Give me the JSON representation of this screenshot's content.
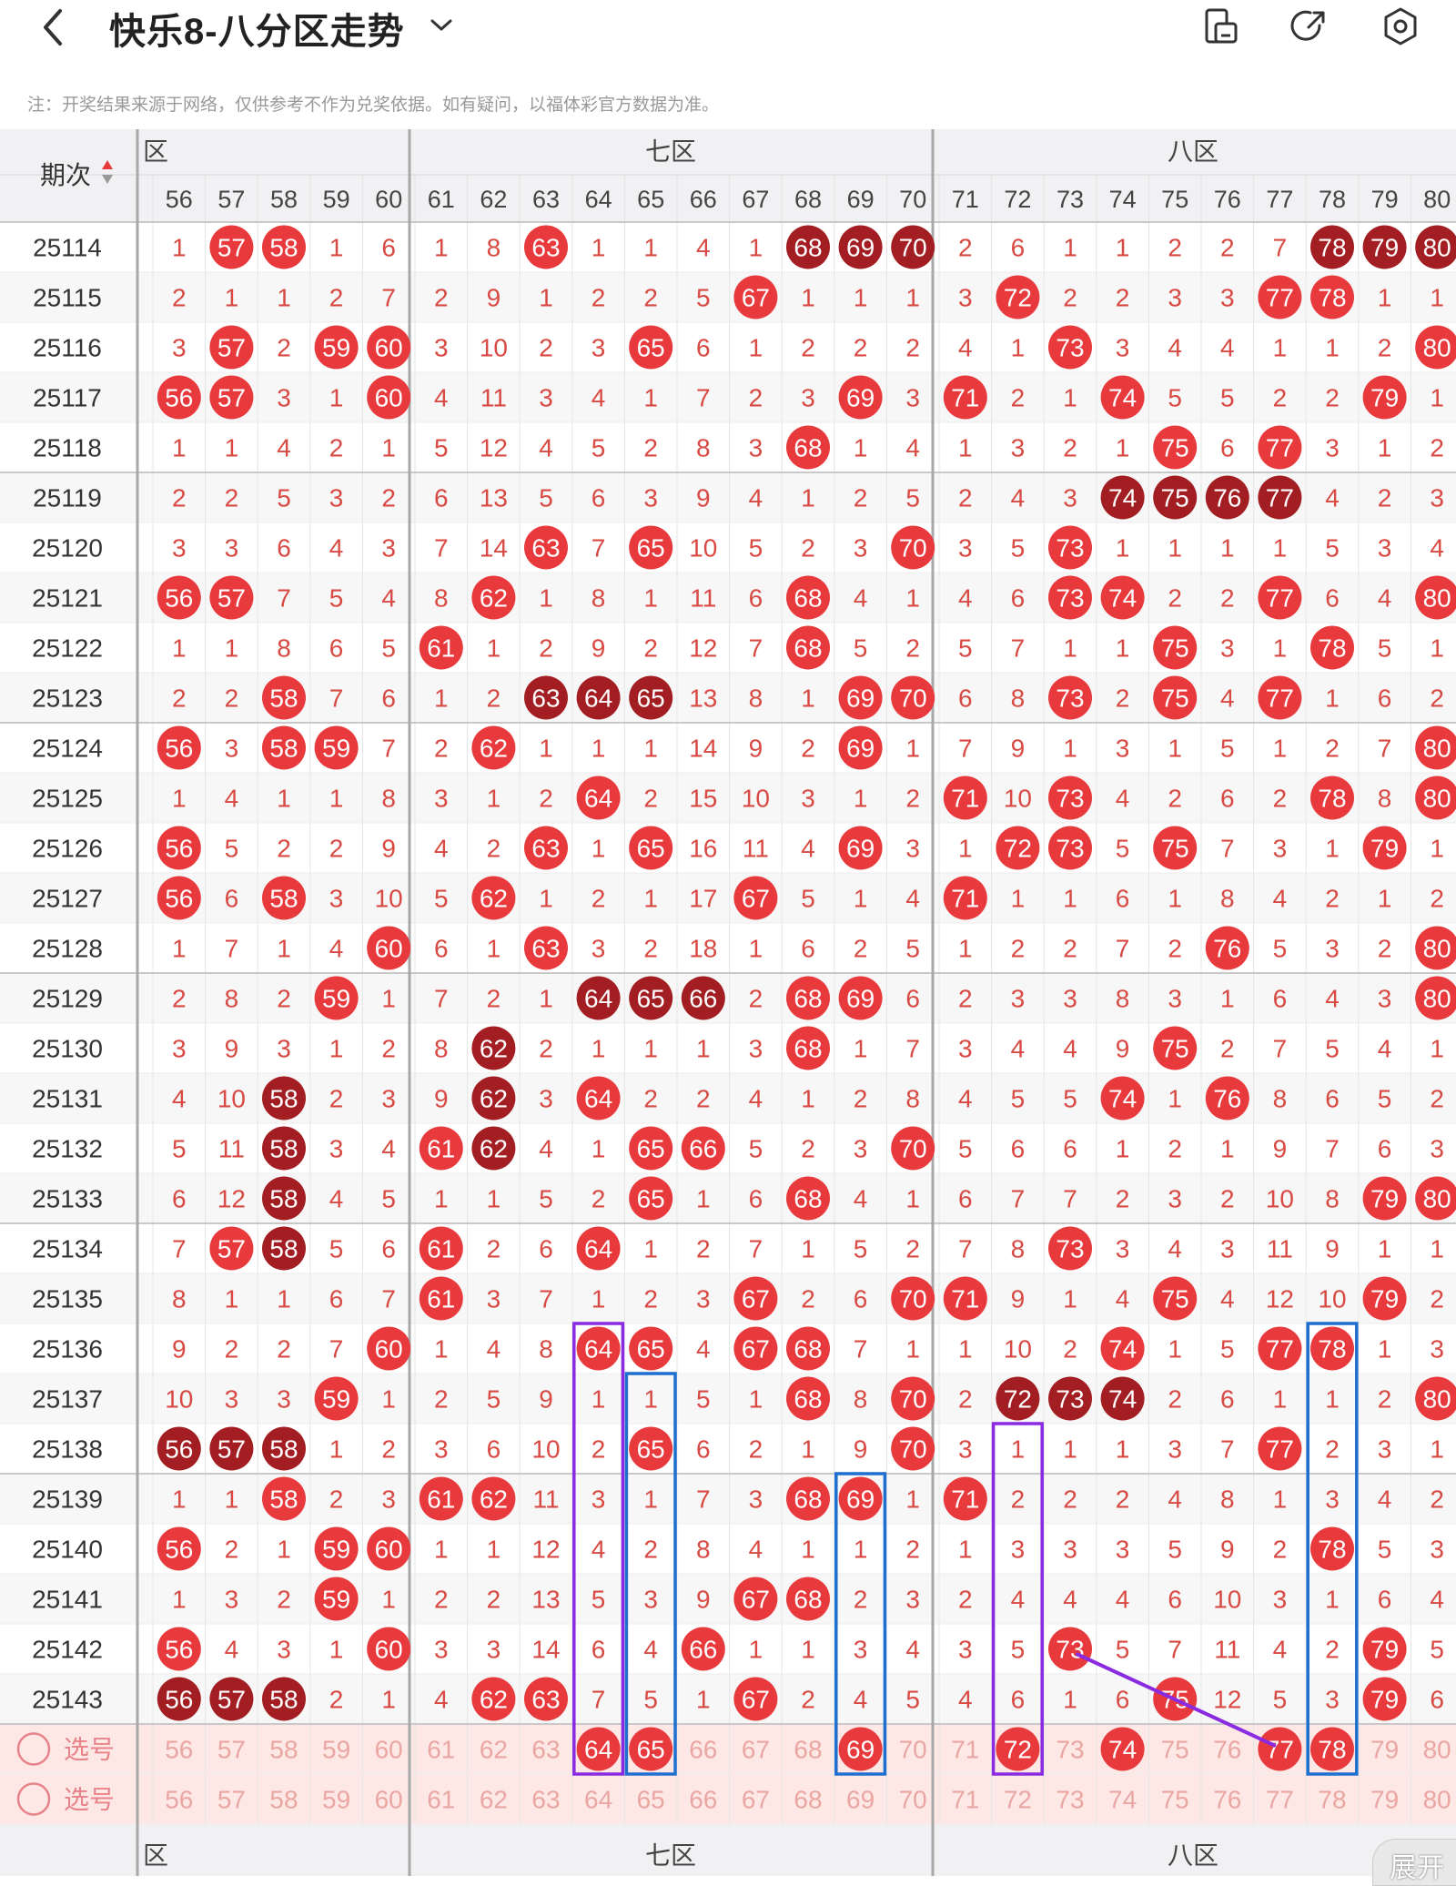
{
  "header": {
    "title": "快乐8-八分区走势",
    "back_icon": "chevron-left-icon",
    "dropdown_icon": "chevron-down-icon",
    "actions": [
      "split-screen-icon",
      "share-icon",
      "settings-icon"
    ]
  },
  "note": "注：开奖结果来源于网络，仅供参考不作为兑奖依据。如有疑问，以福体彩官方数据为准。",
  "table": {
    "period_header": "期次",
    "sort_icon": "sort-arrows-icon",
    "zone_headers": [
      "六区",
      "七区",
      "八区"
    ],
    "zone_header_visible_text": [
      "区",
      "七区",
      "八区"
    ],
    "columns": [
      56,
      57,
      58,
      59,
      60,
      61,
      62,
      63,
      64,
      65,
      66,
      67,
      68,
      69,
      70,
      71,
      72,
      73,
      74,
      75,
      76,
      77,
      78,
      79,
      80
    ],
    "rows": [
      {
        "period": "25114",
        "cells": [
          1,
          57,
          58,
          1,
          6,
          1,
          8,
          63,
          1,
          1,
          4,
          1,
          68,
          69,
          70,
          2,
          6,
          1,
          1,
          2,
          2,
          7,
          78,
          79,
          80
        ],
        "repeat": [
          68,
          69,
          70,
          78,
          79,
          80
        ]
      },
      {
        "period": "25115",
        "cells": [
          2,
          1,
          1,
          2,
          7,
          2,
          9,
          1,
          2,
          2,
          5,
          67,
          1,
          1,
          1,
          3,
          72,
          2,
          2,
          3,
          3,
          77,
          78,
          1,
          1
        ],
        "repeat": []
      },
      {
        "period": "25116",
        "cells": [
          3,
          57,
          2,
          59,
          60,
          3,
          10,
          2,
          3,
          65,
          6,
          1,
          2,
          2,
          2,
          4,
          1,
          73,
          3,
          4,
          4,
          1,
          1,
          2,
          80
        ],
        "repeat": []
      },
      {
        "period": "25117",
        "cells": [
          56,
          57,
          3,
          1,
          60,
          4,
          11,
          3,
          4,
          1,
          7,
          2,
          3,
          69,
          3,
          71,
          2,
          1,
          74,
          5,
          5,
          2,
          2,
          79,
          1
        ],
        "repeat": []
      },
      {
        "period": "25118",
        "cells": [
          1,
          1,
          4,
          2,
          1,
          5,
          12,
          4,
          5,
          2,
          8,
          3,
          68,
          1,
          4,
          1,
          3,
          2,
          1,
          75,
          6,
          77,
          3,
          1,
          2
        ],
        "repeat": []
      },
      {
        "period": "25119",
        "cells": [
          2,
          2,
          5,
          3,
          2,
          6,
          13,
          5,
          6,
          3,
          9,
          4,
          1,
          2,
          5,
          2,
          4,
          3,
          74,
          75,
          76,
          77,
          4,
          2,
          3
        ],
        "repeat": [
          74,
          75,
          76,
          77
        ]
      },
      {
        "period": "25120",
        "cells": [
          3,
          3,
          6,
          4,
          3,
          7,
          14,
          63,
          7,
          65,
          10,
          5,
          2,
          3,
          70,
          3,
          5,
          73,
          1,
          1,
          1,
          1,
          5,
          3,
          4
        ],
        "repeat": []
      },
      {
        "period": "25121",
        "cells": [
          56,
          57,
          7,
          5,
          4,
          8,
          62,
          1,
          8,
          1,
          11,
          6,
          68,
          4,
          1,
          4,
          6,
          73,
          74,
          2,
          2,
          77,
          6,
          4,
          80
        ],
        "repeat": []
      },
      {
        "period": "25122",
        "cells": [
          1,
          1,
          8,
          6,
          5,
          61,
          1,
          2,
          9,
          2,
          12,
          7,
          68,
          5,
          2,
          5,
          7,
          1,
          1,
          75,
          3,
          1,
          78,
          5,
          1
        ],
        "repeat": []
      },
      {
        "period": "25123",
        "cells": [
          2,
          2,
          58,
          7,
          6,
          1,
          2,
          63,
          64,
          65,
          13,
          8,
          1,
          69,
          70,
          6,
          8,
          73,
          2,
          75,
          4,
          77,
          1,
          6,
          2
        ],
        "repeat": [
          63,
          64,
          65
        ]
      },
      {
        "period": "25124",
        "cells": [
          56,
          3,
          58,
          59,
          7,
          2,
          62,
          1,
          1,
          1,
          14,
          9,
          2,
          69,
          1,
          7,
          9,
          1,
          3,
          1,
          5,
          1,
          2,
          7,
          80
        ],
        "repeat": []
      },
      {
        "period": "25125",
        "cells": [
          1,
          4,
          1,
          1,
          8,
          3,
          1,
          2,
          64,
          2,
          15,
          10,
          3,
          1,
          2,
          71,
          10,
          73,
          4,
          2,
          6,
          2,
          78,
          8,
          80
        ],
        "repeat": []
      },
      {
        "period": "25126",
        "cells": [
          56,
          5,
          2,
          2,
          9,
          4,
          2,
          63,
          1,
          65,
          16,
          11,
          4,
          69,
          3,
          1,
          72,
          73,
          5,
          75,
          7,
          3,
          1,
          79,
          1
        ],
        "repeat": []
      },
      {
        "period": "25127",
        "cells": [
          56,
          6,
          58,
          3,
          10,
          5,
          62,
          1,
          2,
          1,
          17,
          67,
          5,
          1,
          4,
          71,
          1,
          1,
          6,
          1,
          8,
          4,
          2,
          1,
          2
        ],
        "repeat": []
      },
      {
        "period": "25128",
        "cells": [
          1,
          7,
          1,
          4,
          60,
          6,
          1,
          63,
          3,
          2,
          18,
          1,
          6,
          2,
          5,
          1,
          2,
          2,
          7,
          2,
          76,
          5,
          3,
          2,
          80
        ],
        "repeat": []
      },
      {
        "period": "25129",
        "cells": [
          2,
          8,
          2,
          59,
          1,
          7,
          2,
          1,
          64,
          65,
          66,
          2,
          68,
          69,
          6,
          2,
          3,
          3,
          8,
          3,
          1,
          6,
          4,
          3,
          80
        ],
        "repeat": [
          64,
          65,
          66
        ]
      },
      {
        "period": "25130",
        "cells": [
          3,
          9,
          3,
          1,
          2,
          8,
          62,
          2,
          1,
          1,
          1,
          3,
          68,
          1,
          7,
          3,
          4,
          4,
          9,
          75,
          2,
          7,
          5,
          4,
          1
        ],
        "repeat": [
          62
        ]
      },
      {
        "period": "25131",
        "cells": [
          4,
          10,
          58,
          2,
          3,
          9,
          62,
          3,
          64,
          2,
          2,
          4,
          1,
          2,
          8,
          4,
          5,
          5,
          74,
          1,
          76,
          8,
          6,
          5,
          2
        ],
        "repeat": [
          58,
          62
        ]
      },
      {
        "period": "25132",
        "cells": [
          5,
          11,
          58,
          3,
          4,
          61,
          62,
          4,
          1,
          65,
          66,
          5,
          2,
          3,
          70,
          5,
          6,
          6,
          1,
          2,
          1,
          9,
          7,
          6,
          3
        ],
        "repeat": [
          58,
          62
        ]
      },
      {
        "period": "25133",
        "cells": [
          6,
          12,
          58,
          4,
          5,
          1,
          1,
          5,
          2,
          65,
          1,
          6,
          68,
          4,
          1,
          6,
          7,
          7,
          2,
          3,
          2,
          10,
          8,
          79,
          80
        ],
        "repeat": [
          58
        ]
      },
      {
        "period": "25134",
        "cells": [
          7,
          57,
          58,
          5,
          6,
          61,
          2,
          6,
          64,
          1,
          2,
          7,
          1,
          5,
          2,
          7,
          8,
          73,
          3,
          4,
          3,
          11,
          9,
          1,
          1
        ],
        "repeat": [
          58
        ]
      },
      {
        "period": "25135",
        "cells": [
          8,
          1,
          1,
          6,
          7,
          61,
          3,
          7,
          1,
          2,
          3,
          67,
          2,
          6,
          70,
          71,
          9,
          1,
          4,
          75,
          4,
          12,
          10,
          79,
          2
        ],
        "repeat": []
      },
      {
        "period": "25136",
        "cells": [
          9,
          2,
          2,
          7,
          60,
          1,
          4,
          8,
          64,
          65,
          4,
          67,
          68,
          7,
          1,
          1,
          10,
          2,
          74,
          1,
          5,
          77,
          78,
          1,
          3
        ],
        "repeat": []
      },
      {
        "period": "25137",
        "cells": [
          10,
          3,
          3,
          59,
          1,
          2,
          5,
          9,
          1,
          1,
          5,
          1,
          68,
          8,
          70,
          2,
          72,
          73,
          74,
          2,
          6,
          1,
          1,
          2,
          80
        ],
        "repeat": [
          72,
          73,
          74
        ]
      },
      {
        "period": "25138",
        "cells": [
          56,
          57,
          58,
          1,
          2,
          3,
          6,
          10,
          2,
          65,
          6,
          2,
          1,
          9,
          70,
          3,
          1,
          1,
          1,
          3,
          7,
          77,
          2,
          3,
          1
        ],
        "repeat": [
          56,
          57,
          58
        ]
      },
      {
        "period": "25139",
        "cells": [
          1,
          1,
          58,
          2,
          3,
          61,
          62,
          11,
          3,
          1,
          7,
          3,
          68,
          69,
          1,
          71,
          2,
          2,
          2,
          4,
          8,
          1,
          3,
          4,
          2
        ],
        "repeat": []
      },
      {
        "period": "25140",
        "cells": [
          56,
          2,
          1,
          59,
          60,
          1,
          1,
          12,
          4,
          2,
          8,
          4,
          1,
          1,
          2,
          1,
          3,
          3,
          3,
          5,
          9,
          2,
          78,
          5,
          3
        ],
        "repeat": []
      },
      {
        "period": "25141",
        "cells": [
          1,
          3,
          2,
          59,
          1,
          2,
          2,
          13,
          5,
          3,
          9,
          67,
          68,
          2,
          3,
          2,
          4,
          4,
          4,
          6,
          10,
          3,
          1,
          6,
          4
        ],
        "repeat": []
      },
      {
        "period": "25142",
        "cells": [
          56,
          4,
          3,
          1,
          60,
          3,
          3,
          14,
          6,
          4,
          66,
          1,
          1,
          3,
          4,
          3,
          5,
          73,
          5,
          7,
          11,
          4,
          2,
          79,
          5
        ],
        "repeat": []
      },
      {
        "period": "25143",
        "cells": [
          56,
          57,
          58,
          2,
          1,
          4,
          62,
          63,
          7,
          5,
          1,
          67,
          2,
          4,
          5,
          4,
          6,
          1,
          6,
          75,
          12,
          5,
          3,
          79,
          6
        ],
        "repeat": [
          56,
          57,
          58
        ]
      }
    ],
    "select_rows": [
      {
        "label": "选号",
        "selected": [
          64,
          65,
          69,
          72,
          74,
          77,
          78
        ]
      },
      {
        "label": "选号",
        "selected": []
      }
    ]
  },
  "expand_label": "展开",
  "colors": {
    "ball_red": "#e8393c",
    "ball_dark": "#a31e22",
    "text_red": "#d84a43",
    "highlight_purple": "#8a2be2",
    "highlight_blue": "#1e6fd0",
    "select_bg": "#fde8e6"
  }
}
